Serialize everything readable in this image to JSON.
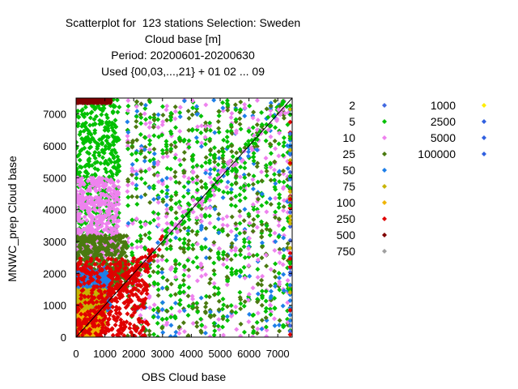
{
  "chart_data": {
    "type": "scatter",
    "title_lines": [
      "Scatterplot for  123 stations Selection: Sweden",
      "Cloud base [m]",
      "Period: 20200601-20200630",
      "Used {00,03,...,21} + 01 02 ... 09"
    ],
    "xlabel": "OBS Cloud base",
    "ylabel": "MNWC_prep Cloud base",
    "xlim": [
      0,
      7500
    ],
    "ylim": [
      0,
      7500
    ],
    "x_ticks": [
      0,
      1000,
      2000,
      3000,
      4000,
      5000,
      6000,
      7000
    ],
    "x_tick_labels": [
      "0",
      "1000",
      "2000",
      "3000",
      "4000",
      "5000",
      "6000",
      "7000"
    ],
    "y_ticks": [
      0,
      1000,
      2000,
      3000,
      4000,
      5000,
      6000,
      7000
    ],
    "y_tick_labels": [
      "0",
      "1000",
      "2000",
      "3000",
      "4000",
      "5000",
      "6000",
      "7000"
    ],
    "diagonal_line": true,
    "grid": false,
    "legend_position": "right",
    "legend": [
      {
        "label": "2",
        "color": "#4169e1"
      },
      {
        "label": "5",
        "color": "#00c000"
      },
      {
        "label": "10",
        "color": "#ee82ee"
      },
      {
        "label": "25",
        "color": "#4a7a10"
      },
      {
        "label": "50",
        "color": "#1e7fe8"
      },
      {
        "label": "75",
        "color": "#c8b400"
      },
      {
        "label": "100",
        "color": "#f0b400"
      },
      {
        "label": "250",
        "color": "#e00000"
      },
      {
        "label": "500",
        "color": "#800000"
      },
      {
        "label": "750",
        "color": "#a0a0a0"
      },
      {
        "label": "1000",
        "color": "#ffee00"
      },
      {
        "label": "2500",
        "color": "#3060e0"
      },
      {
        "label": "5000",
        "color": "#3060e0"
      },
      {
        "label": "100000",
        "color": "#3060e0"
      }
    ],
    "dominant_regions": [
      {
        "series": "5",
        "x": [
          0,
          1500
        ],
        "y": [
          3000,
          7500
        ]
      },
      {
        "series": "10",
        "x": [
          0,
          1500
        ],
        "y": [
          2500,
          5000
        ]
      },
      {
        "series": "25",
        "x": [
          0,
          1800
        ],
        "y": [
          1500,
          3200
        ]
      },
      {
        "series": "50",
        "x": [
          0,
          1200
        ],
        "y": [
          800,
          2200
        ]
      },
      {
        "series": "75",
        "x": [
          0,
          1000
        ],
        "y": [
          200,
          1500
        ]
      },
      {
        "series": "100",
        "x": [
          0,
          800
        ],
        "y": [
          0,
          800
        ]
      },
      {
        "series": "250",
        "x": [
          0,
          2500
        ],
        "y": [
          0,
          2500
        ]
      },
      {
        "series": "500",
        "x": [
          0,
          1200
        ],
        "y": [
          7350,
          7500
        ]
      }
    ]
  }
}
